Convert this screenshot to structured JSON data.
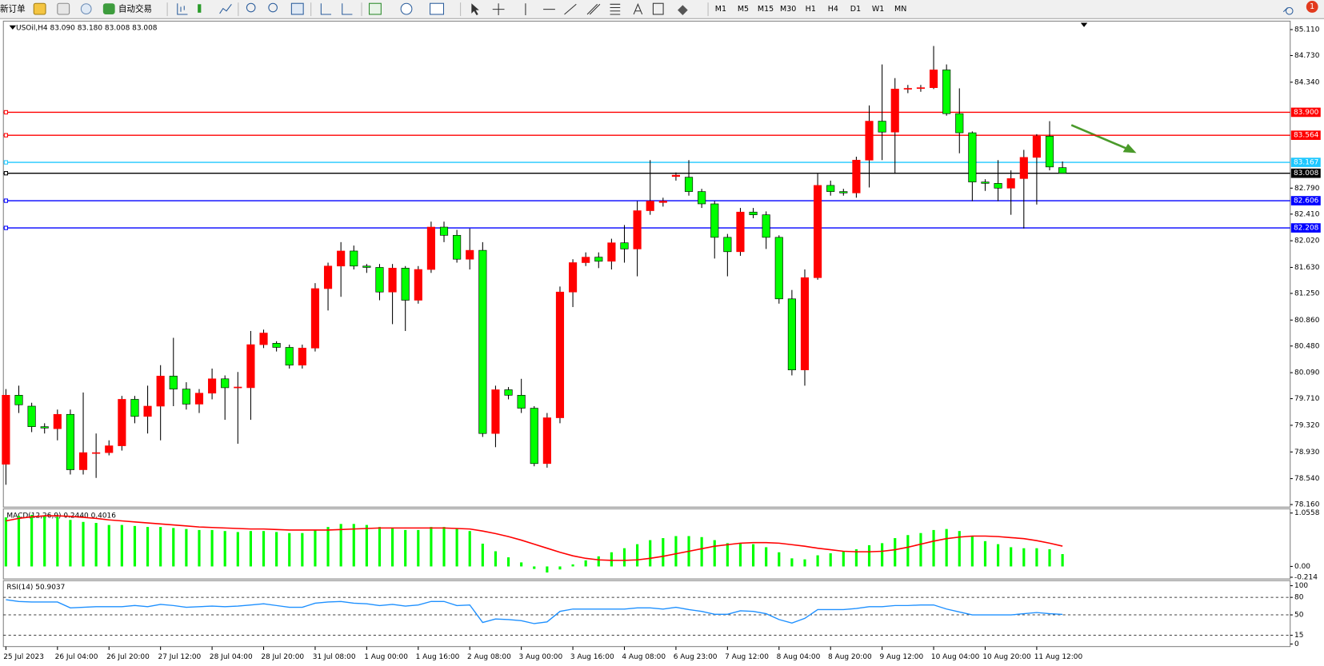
{
  "toolbar": {
    "new_order": "新订单",
    "auto_trading": "自动交易",
    "timeframes": [
      "M1",
      "M5",
      "M15",
      "M30",
      "H1",
      "H4",
      "D1",
      "W1",
      "MN"
    ],
    "badge": 1
  },
  "chart_data": [
    {
      "type": "candlestick",
      "title": "USOil,H4  83.090 83.180 83.008 83.008",
      "up_color": "#ff0000",
      "down_color": "#00ff00",
      "categories": [
        "25 Jul 2023",
        null,
        null,
        null,
        "26 Jul 04:00",
        null,
        null,
        null,
        "26 Jul 20:00",
        null,
        null,
        null,
        "27 Jul 12:00",
        null,
        null,
        null,
        "28 Jul 04:00",
        null,
        null,
        null,
        "28 Jul 20:00",
        null,
        null,
        null,
        "31 Jul 08:00",
        null,
        null,
        null,
        "1 Aug 00:00",
        null,
        null,
        null,
        "1 Aug 16:00",
        null,
        null,
        null,
        "2 Aug 08:00",
        null,
        null,
        null,
        "3 Aug 00:00",
        null,
        null,
        null,
        "3 Aug 16:00",
        null,
        null,
        null,
        "4 Aug 08:00",
        null,
        null,
        null,
        "6 Aug 23:00",
        null,
        null,
        null,
        "7 Aug 12:00",
        null,
        null,
        null,
        "8 Aug 04:00",
        null,
        null,
        null,
        "8 Aug 20:00",
        null,
        null,
        null,
        "9 Aug 12:00",
        null,
        null,
        null,
        "10 Aug 04:00",
        null,
        null,
        null,
        "10 Aug 20:00",
        null,
        null,
        null,
        "11 Aug 12:00",
        null,
        null
      ],
      "open": [
        78.75,
        79.76,
        79.6,
        79.3,
        79.27,
        79.48,
        78.67,
        78.92,
        78.92,
        79.02,
        79.7,
        79.45,
        79.6,
        80.04,
        79.85,
        79.63,
        79.79,
        80.0,
        79.87,
        79.87,
        80.5,
        80.52,
        80.46,
        80.2,
        80.45,
        81.32,
        81.65,
        81.87,
        81.65,
        81.63,
        81.27,
        81.62,
        81.15,
        81.6,
        82.22,
        82.1,
        81.75,
        81.88,
        79.2,
        79.84,
        79.76,
        79.57,
        78.76,
        79.43,
        81.27,
        81.7,
        81.78,
        81.72,
        81.99,
        81.9,
        82.46,
        82.58,
        82.96,
        82.95,
        82.74,
        82.56,
        82.07,
        81.86,
        82.44,
        82.4,
        82.07,
        81.17,
        80.13,
        81.48,
        82.83,
        82.74,
        82.72,
        83.2,
        83.77,
        83.61,
        84.24,
        84.25,
        84.26,
        84.52,
        83.88,
        83.6,
        82.88,
        82.86,
        82.79,
        82.93,
        83.24,
        83.55,
        83.09
      ],
      "high": [
        79.85,
        79.9,
        79.65,
        79.35,
        79.55,
        79.55,
        79.8,
        79.2,
        79.1,
        79.75,
        79.75,
        79.9,
        80.2,
        80.6,
        79.95,
        79.85,
        80.15,
        80.05,
        80.1,
        80.7,
        80.72,
        80.55,
        80.5,
        80.5,
        81.4,
        81.7,
        82.0,
        81.95,
        81.68,
        81.68,
        81.68,
        81.65,
        81.65,
        82.3,
        82.3,
        82.18,
        82.2,
        82.0,
        79.9,
        79.88,
        80.0,
        79.6,
        79.5,
        81.35,
        81.75,
        81.85,
        81.85,
        82.05,
        82.25,
        82.6,
        83.2,
        82.65,
        83.02,
        83.2,
        82.78,
        82.6,
        82.12,
        82.5,
        82.5,
        82.45,
        82.1,
        81.3,
        81.6,
        83.0,
        82.9,
        82.78,
        83.25,
        84.0,
        84.6,
        84.4,
        84.3,
        84.3,
        84.87,
        84.6,
        84.25,
        83.62,
        82.92,
        83.2,
        83.05,
        83.35,
        83.58,
        83.77,
        83.18
      ],
      "low": [
        78.45,
        79.5,
        79.22,
        79.2,
        79.1,
        78.6,
        78.6,
        78.55,
        78.88,
        78.95,
        79.35,
        79.2,
        79.1,
        79.6,
        79.55,
        79.5,
        79.7,
        79.4,
        79.05,
        79.4,
        80.45,
        80.4,
        80.15,
        80.15,
        80.4,
        81.0,
        81.2,
        81.6,
        81.55,
        81.15,
        80.8,
        80.7,
        81.1,
        81.55,
        82.0,
        81.7,
        81.6,
        79.15,
        79.0,
        79.7,
        79.5,
        78.72,
        78.7,
        79.35,
        81.05,
        81.65,
        81.62,
        81.6,
        81.7,
        81.5,
        82.4,
        82.52,
        82.9,
        82.68,
        82.5,
        81.76,
        81.5,
        81.8,
        82.35,
        81.9,
        81.1,
        80.05,
        79.9,
        81.45,
        82.68,
        82.68,
        82.65,
        82.8,
        83.2,
        83.0,
        84.18,
        84.2,
        84.24,
        83.85,
        83.3,
        82.6,
        82.75,
        82.6,
        82.4,
        82.2,
        82.55,
        83.05,
        83.008
      ],
      "close": [
        79.76,
        79.62,
        79.3,
        79.28,
        79.48,
        78.67,
        78.92,
        78.92,
        79.02,
        79.7,
        79.45,
        79.6,
        80.04,
        79.85,
        79.63,
        79.79,
        80.0,
        79.87,
        79.88,
        80.5,
        80.67,
        80.46,
        80.2,
        80.45,
        81.32,
        81.65,
        81.87,
        81.65,
        81.63,
        81.27,
        81.62,
        81.15,
        81.6,
        82.22,
        82.1,
        81.75,
        81.88,
        79.2,
        79.84,
        79.76,
        79.57,
        78.76,
        79.43,
        81.27,
        81.7,
        81.78,
        81.72,
        81.99,
        81.9,
        82.46,
        82.6,
        82.6,
        82.98,
        82.74,
        82.56,
        82.07,
        81.86,
        82.44,
        82.4,
        82.07,
        81.17,
        80.13,
        81.48,
        82.83,
        82.74,
        82.72,
        83.2,
        83.77,
        83.61,
        84.24,
        84.25,
        84.26,
        84.52,
        83.88,
        83.6,
        82.88,
        82.86,
        82.79,
        82.93,
        83.24,
        83.55,
        83.1,
        83.008
      ],
      "ylim": [
        78.16,
        85.11
      ],
      "yticks": [
        {
          "value": 85.11,
          "label": "85.110"
        },
        {
          "value": 84.73,
          "label": "84.730"
        },
        {
          "value": 84.34,
          "label": "84.340"
        },
        {
          "value": 82.79,
          "label": "82.790"
        },
        {
          "value": 82.41,
          "label": "82.410"
        },
        {
          "value": 82.02,
          "label": "82.020"
        },
        {
          "value": 81.63,
          "label": "81.630"
        },
        {
          "value": 81.25,
          "label": "81.250"
        },
        {
          "value": 80.86,
          "label": "80.860"
        },
        {
          "value": 80.48,
          "label": "80.480"
        },
        {
          "value": 80.09,
          "label": "80.090"
        },
        {
          "value": 79.71,
          "label": "79.710"
        },
        {
          "value": 79.32,
          "label": "79.320"
        },
        {
          "value": 78.93,
          "label": "78.930"
        },
        {
          "value": 78.54,
          "label": "78.540"
        },
        {
          "value": 78.16,
          "label": "78.160"
        }
      ],
      "hlines": [
        {
          "value": 83.9,
          "label": "83.900",
          "color": "#ff0000"
        },
        {
          "value": 83.564,
          "label": "83.564",
          "color": "#ff0000"
        },
        {
          "value": 83.167,
          "label": "83.167",
          "color": "#1ec8ff"
        },
        {
          "value": 83.008,
          "label": "83.008",
          "color": "#000000"
        },
        {
          "value": 82.606,
          "label": "82.606",
          "color": "#0000ff"
        },
        {
          "value": 82.208,
          "label": "82.208",
          "color": "#0000ff"
        }
      ]
    },
    {
      "type": "macd",
      "title": "MACD(12,26,9) 0.2440 0.4016",
      "histogram_color": "#00ff00",
      "signal_color": "#ff0000",
      "histogram": [
        0.97,
        1.0,
        1.02,
        1.0,
        0.98,
        0.92,
        0.88,
        0.86,
        0.82,
        0.82,
        0.8,
        0.78,
        0.78,
        0.76,
        0.74,
        0.72,
        0.72,
        0.7,
        0.68,
        0.7,
        0.7,
        0.68,
        0.66,
        0.66,
        0.72,
        0.78,
        0.84,
        0.84,
        0.82,
        0.78,
        0.76,
        0.72,
        0.72,
        0.78,
        0.78,
        0.75,
        0.7,
        0.45,
        0.3,
        0.18,
        0.08,
        -0.05,
        -0.12,
        -0.06,
        0.04,
        0.12,
        0.2,
        0.28,
        0.36,
        0.44,
        0.52,
        0.56,
        0.6,
        0.6,
        0.58,
        0.52,
        0.46,
        0.46,
        0.44,
        0.38,
        0.28,
        0.16,
        0.14,
        0.22,
        0.26,
        0.3,
        0.34,
        0.42,
        0.46,
        0.56,
        0.62,
        0.66,
        0.72,
        0.74,
        0.7,
        0.6,
        0.5,
        0.44,
        0.38,
        0.36,
        0.36,
        0.34,
        0.244
      ],
      "signal": [
        0.9,
        0.95,
        0.98,
        1.0,
        1.0,
        0.99,
        0.97,
        0.95,
        0.92,
        0.9,
        0.88,
        0.86,
        0.84,
        0.82,
        0.8,
        0.78,
        0.77,
        0.76,
        0.75,
        0.74,
        0.74,
        0.73,
        0.72,
        0.72,
        0.72,
        0.72,
        0.73,
        0.74,
        0.75,
        0.76,
        0.76,
        0.76,
        0.76,
        0.76,
        0.76,
        0.75,
        0.74,
        0.7,
        0.65,
        0.59,
        0.52,
        0.44,
        0.36,
        0.28,
        0.21,
        0.16,
        0.13,
        0.12,
        0.12,
        0.13,
        0.16,
        0.2,
        0.25,
        0.3,
        0.35,
        0.4,
        0.43,
        0.46,
        0.47,
        0.47,
        0.46,
        0.43,
        0.4,
        0.36,
        0.33,
        0.3,
        0.29,
        0.29,
        0.3,
        0.33,
        0.38,
        0.44,
        0.5,
        0.55,
        0.58,
        0.6,
        0.6,
        0.59,
        0.57,
        0.55,
        0.51,
        0.46,
        0.4016
      ],
      "ylim": [
        -0.214,
        1.0558
      ],
      "yticks": [
        1.0558,
        {
          "value": 0,
          "label": "0.00"
        },
        -0.214
      ]
    },
    {
      "type": "line",
      "title": "RSI(14) 50.9037",
      "color": "#1e90ff",
      "values": [
        76,
        73,
        72,
        72,
        72,
        62,
        63,
        64,
        64,
        64,
        66,
        64,
        68,
        66,
        63,
        64,
        65,
        64,
        65,
        67,
        69,
        66,
        63,
        63,
        70,
        72,
        73,
        70,
        69,
        66,
        68,
        65,
        67,
        73,
        73,
        66,
        67,
        37,
        43,
        42,
        40,
        35,
        38,
        56,
        60,
        60,
        60,
        60,
        60,
        62,
        62,
        60,
        63,
        59,
        56,
        51,
        51,
        57,
        56,
        52,
        42,
        36,
        44,
        59,
        59,
        59,
        61,
        64,
        64,
        66,
        66,
        67,
        67,
        60,
        55,
        50,
        50,
        50,
        50,
        52,
        54,
        52,
        50.9037
      ],
      "ylim": [
        0,
        100
      ],
      "yticks": [
        100,
        80,
        50,
        15,
        0
      ],
      "levels": [
        80,
        50,
        15
      ]
    }
  ]
}
